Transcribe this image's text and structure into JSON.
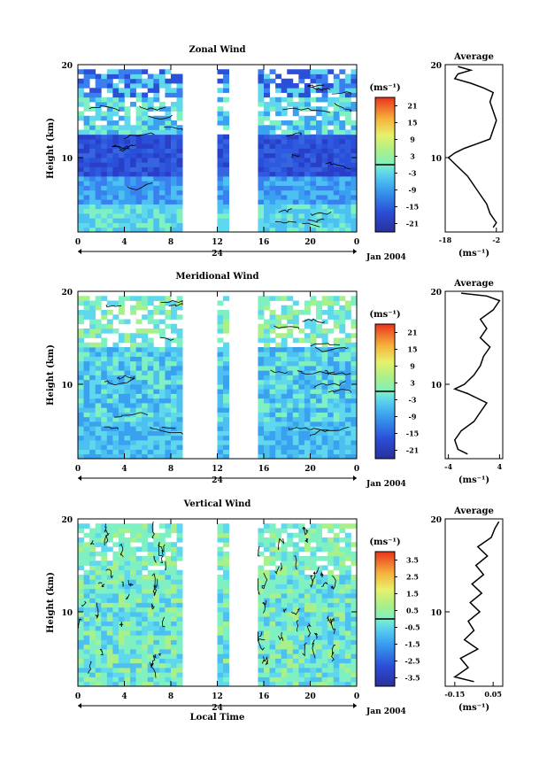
{
  "chart_data": [
    {
      "type": "heatmap",
      "title": "Zonal Wind",
      "ylabel": "Height (km)",
      "xlabel": "",
      "xlim": [
        0,
        24
      ],
      "ylim": [
        2,
        20
      ],
      "x_ticks": [
        "0",
        "4",
        "8",
        "12",
        "16",
        "20",
        "0"
      ],
      "y_ticks": [
        "20",
        "10"
      ],
      "day_label": "24",
      "date_label": "Jan 2004",
      "colorbar": {
        "unit": "(ms⁻¹)",
        "ticks": [
          "21",
          "15",
          "9",
          "3",
          "-3",
          "-9",
          "-15",
          "-21"
        ],
        "zero_line_value": 0
      },
      "data_gaps_hours": [
        [
          9,
          12
        ],
        [
          12.8,
          15.5
        ]
      ],
      "profile": {
        "title": "Average",
        "xlabel": "(ms⁻¹)",
        "x_ticks": [
          "-18",
          "-2"
        ],
        "xlim": [
          -18,
          0
        ],
        "y_ticks": [
          "20",
          "10"
        ],
        "points": [
          [
            -3,
            2.5
          ],
          [
            -2,
            3
          ],
          [
            -4,
            4
          ],
          [
            -5,
            5
          ],
          [
            -7,
            6
          ],
          [
            -9,
            7
          ],
          [
            -11,
            8
          ],
          [
            -14,
            9
          ],
          [
            -17,
            10
          ],
          [
            -15,
            10.5
          ],
          [
            -12,
            11
          ],
          [
            -8,
            11.5
          ],
          [
            -4,
            12
          ],
          [
            -3,
            13
          ],
          [
            -2,
            14
          ],
          [
            -3,
            15
          ],
          [
            -4,
            16
          ],
          [
            -3,
            17
          ],
          [
            -6,
            17.5
          ],
          [
            -10,
            18
          ],
          [
            -15,
            18.5
          ],
          [
            -14,
            19
          ],
          [
            -10,
            19.4
          ],
          [
            -14,
            19.8
          ]
        ]
      }
    },
    {
      "type": "heatmap",
      "title": "Meridional Wind",
      "ylabel": "Height (km)",
      "xlabel": "",
      "xlim": [
        0,
        24
      ],
      "ylim": [
        2,
        20
      ],
      "x_ticks": [
        "0",
        "4",
        "8",
        "12",
        "16",
        "20",
        "0"
      ],
      "y_ticks": [
        "20",
        "10"
      ],
      "day_label": "24",
      "date_label": "Jan 2004",
      "colorbar": {
        "unit": "(ms⁻¹)",
        "ticks": [
          "21",
          "15",
          "9",
          "3",
          "-3",
          "-9",
          "-15",
          "-21"
        ],
        "zero_line_value": 0
      },
      "data_gaps_hours": [
        [
          9,
          12
        ],
        [
          12.8,
          15.5
        ]
      ],
      "profile": {
        "title": "Average",
        "xlabel": "(ms⁻¹)",
        "x_ticks": [
          "-4",
          "4"
        ],
        "xlim": [
          -4.5,
          4.5
        ],
        "y_ticks": [
          "20",
          "10"
        ],
        "points": [
          [
            -1,
            2.5
          ],
          [
            -2.5,
            3
          ],
          [
            -3,
            4
          ],
          [
            -2,
            5
          ],
          [
            0,
            6
          ],
          [
            1,
            7
          ],
          [
            2,
            8
          ],
          [
            -1,
            9
          ],
          [
            -3,
            9.5
          ],
          [
            -1.5,
            10
          ],
          [
            0,
            11
          ],
          [
            1,
            12
          ],
          [
            1.5,
            13
          ],
          [
            2.5,
            14
          ],
          [
            1,
            15
          ],
          [
            2,
            16
          ],
          [
            1,
            17
          ],
          [
            3,
            18
          ],
          [
            4,
            19
          ],
          [
            2,
            19.5
          ],
          [
            -2,
            19.8
          ]
        ]
      }
    },
    {
      "type": "heatmap",
      "title": "Vertical Wind",
      "ylabel": "Height (km)",
      "xlabel": "Local Time",
      "xlim": [
        0,
        24
      ],
      "ylim": [
        2,
        20
      ],
      "x_ticks": [
        "0",
        "4",
        "8",
        "12",
        "16",
        "20",
        "0"
      ],
      "y_ticks": [
        "20",
        "10"
      ],
      "day_label": "24",
      "date_label": "Jan 2004",
      "colorbar": {
        "unit": "(ms⁻¹)",
        "ticks": [
          "3.5",
          "2.5",
          "1.5",
          "0.5",
          "-0.5",
          "-1.5",
          "-2.5",
          "-3.5"
        ],
        "zero_line_value": 0
      },
      "data_gaps_hours": [
        [
          9,
          12
        ],
        [
          12.8,
          15.5
        ]
      ],
      "profile": {
        "title": "Average",
        "xlabel": "(ms⁻¹)",
        "x_ticks": [
          "-0.15",
          "0.05"
        ],
        "xlim": [
          -0.2,
          0.1
        ],
        "y_ticks": [
          "20",
          "10"
        ],
        "points": [
          [
            -0.05,
            2.5
          ],
          [
            -0.15,
            3
          ],
          [
            -0.08,
            4
          ],
          [
            -0.12,
            5
          ],
          [
            -0.03,
            6
          ],
          [
            -0.1,
            7
          ],
          [
            -0.05,
            8
          ],
          [
            -0.08,
            9
          ],
          [
            -0.02,
            10
          ],
          [
            -0.07,
            11
          ],
          [
            -0.01,
            12
          ],
          [
            -0.06,
            13
          ],
          [
            0,
            14
          ],
          [
            -0.04,
            15
          ],
          [
            0.02,
            16
          ],
          [
            -0.03,
            17
          ],
          [
            0.04,
            18
          ],
          [
            0.06,
            19
          ],
          [
            0.08,
            19.7
          ]
        ]
      }
    }
  ]
}
